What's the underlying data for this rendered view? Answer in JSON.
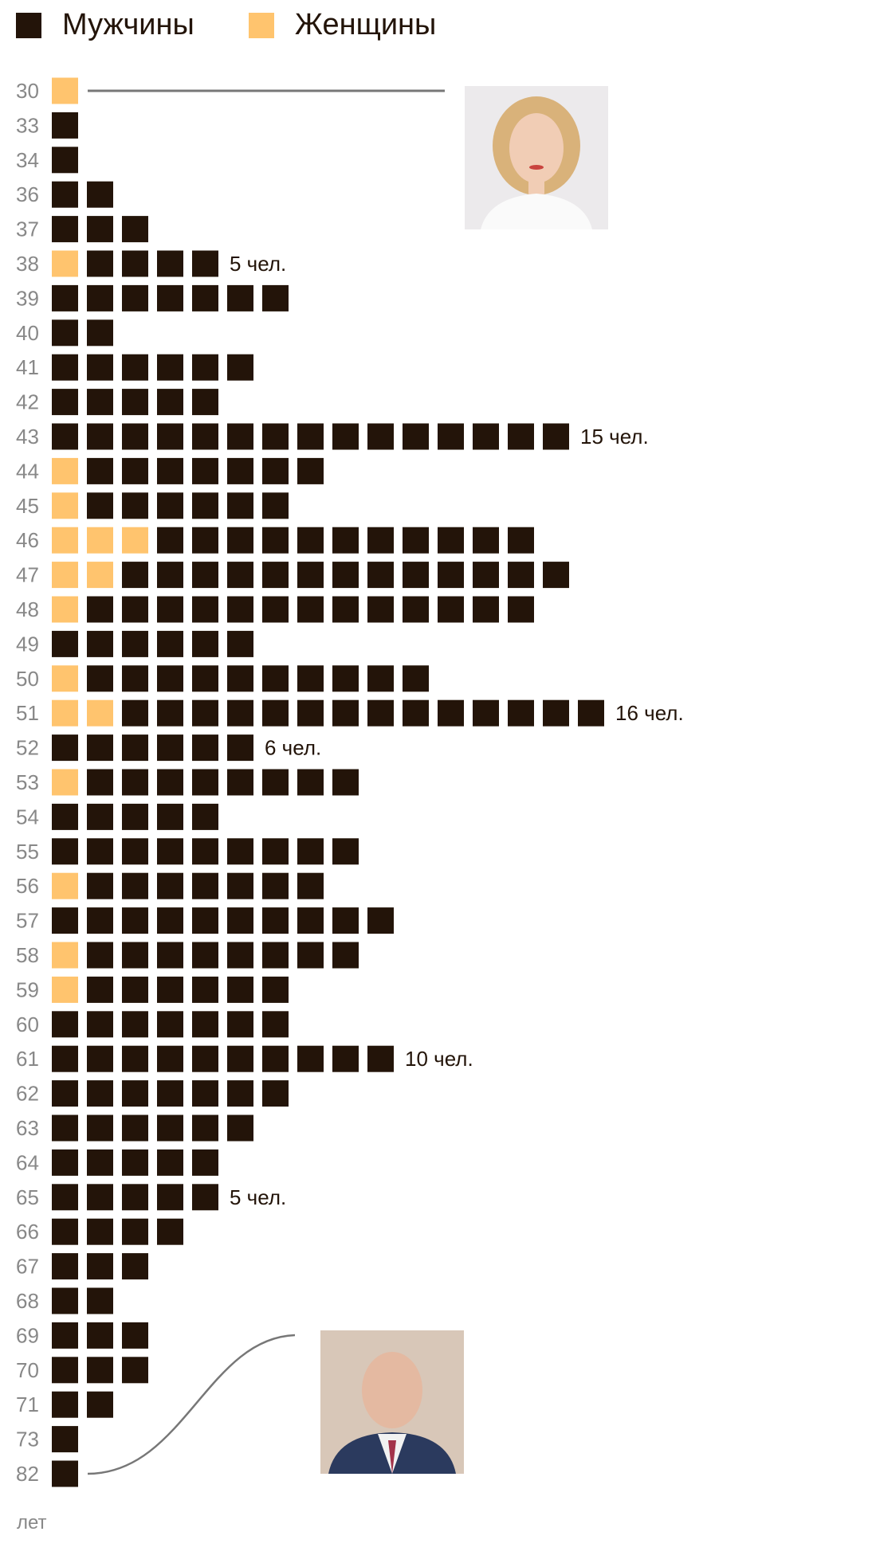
{
  "chart_data": {
    "type": "waffle-bar",
    "legend": [
      {
        "name": "Мужчины",
        "color": "#231409"
      },
      {
        "name": "Женщины",
        "color": "#FFC46E"
      }
    ],
    "unit_label": "лет",
    "rows": [
      {
        "age": "30",
        "women": 1,
        "men": 0,
        "annotation": ""
      },
      {
        "age": "33",
        "women": 0,
        "men": 1,
        "annotation": ""
      },
      {
        "age": "34",
        "women": 0,
        "men": 1,
        "annotation": ""
      },
      {
        "age": "36",
        "women": 0,
        "men": 2,
        "annotation": ""
      },
      {
        "age": "37",
        "women": 0,
        "men": 3,
        "annotation": ""
      },
      {
        "age": "38",
        "women": 1,
        "men": 4,
        "annotation": "5 чел."
      },
      {
        "age": "39",
        "women": 0,
        "men": 7,
        "annotation": ""
      },
      {
        "age": "40",
        "women": 0,
        "men": 2,
        "annotation": ""
      },
      {
        "age": "41",
        "women": 0,
        "men": 6,
        "annotation": ""
      },
      {
        "age": "42",
        "women": 0,
        "men": 5,
        "annotation": ""
      },
      {
        "age": "43",
        "women": 0,
        "men": 15,
        "annotation": "15 чел."
      },
      {
        "age": "44",
        "women": 1,
        "men": 7,
        "annotation": ""
      },
      {
        "age": "45",
        "women": 1,
        "men": 6,
        "annotation": ""
      },
      {
        "age": "46",
        "women": 3,
        "men": 11,
        "annotation": ""
      },
      {
        "age": "47",
        "women": 2,
        "men": 13,
        "annotation": ""
      },
      {
        "age": "48",
        "women": 1,
        "men": 13,
        "annotation": ""
      },
      {
        "age": "49",
        "women": 0,
        "men": 6,
        "annotation": ""
      },
      {
        "age": "50",
        "women": 1,
        "men": 10,
        "annotation": ""
      },
      {
        "age": "51",
        "women": 2,
        "men": 14,
        "annotation": "16 чел."
      },
      {
        "age": "52",
        "women": 0,
        "men": 6,
        "annotation": "6 чел."
      },
      {
        "age": "53",
        "women": 1,
        "men": 8,
        "annotation": ""
      },
      {
        "age": "54",
        "women": 0,
        "men": 5,
        "annotation": ""
      },
      {
        "age": "55",
        "women": 0,
        "men": 9,
        "annotation": ""
      },
      {
        "age": "56",
        "women": 1,
        "men": 7,
        "annotation": ""
      },
      {
        "age": "57",
        "women": 0,
        "men": 10,
        "annotation": ""
      },
      {
        "age": "58",
        "women": 1,
        "men": 8,
        "annotation": ""
      },
      {
        "age": "59",
        "women": 1,
        "men": 6,
        "annotation": ""
      },
      {
        "age": "60",
        "women": 0,
        "men": 7,
        "annotation": ""
      },
      {
        "age": "61",
        "women": 0,
        "men": 10,
        "annotation": "10 чел."
      },
      {
        "age": "62",
        "women": 0,
        "men": 7,
        "annotation": ""
      },
      {
        "age": "63",
        "women": 0,
        "men": 6,
        "annotation": ""
      },
      {
        "age": "64",
        "women": 0,
        "men": 5,
        "annotation": ""
      },
      {
        "age": "65",
        "women": 0,
        "men": 5,
        "annotation": "5 чел."
      },
      {
        "age": "66",
        "women": 0,
        "men": 4,
        "annotation": ""
      },
      {
        "age": "67",
        "women": 0,
        "men": 3,
        "annotation": ""
      },
      {
        "age": "68",
        "women": 0,
        "men": 2,
        "annotation": ""
      },
      {
        "age": "69",
        "women": 0,
        "men": 3,
        "annotation": ""
      },
      {
        "age": "70",
        "women": 0,
        "men": 3,
        "annotation": ""
      },
      {
        "age": "71",
        "women": 0,
        "men": 2,
        "annotation": ""
      },
      {
        "age": "73",
        "women": 0,
        "men": 1,
        "annotation": ""
      },
      {
        "age": "82",
        "women": 0,
        "men": 1,
        "annotation": ""
      }
    ]
  },
  "photos": {
    "youngest": {
      "icon": "woman-portrait"
    },
    "oldest": {
      "icon": "man-portrait"
    }
  }
}
